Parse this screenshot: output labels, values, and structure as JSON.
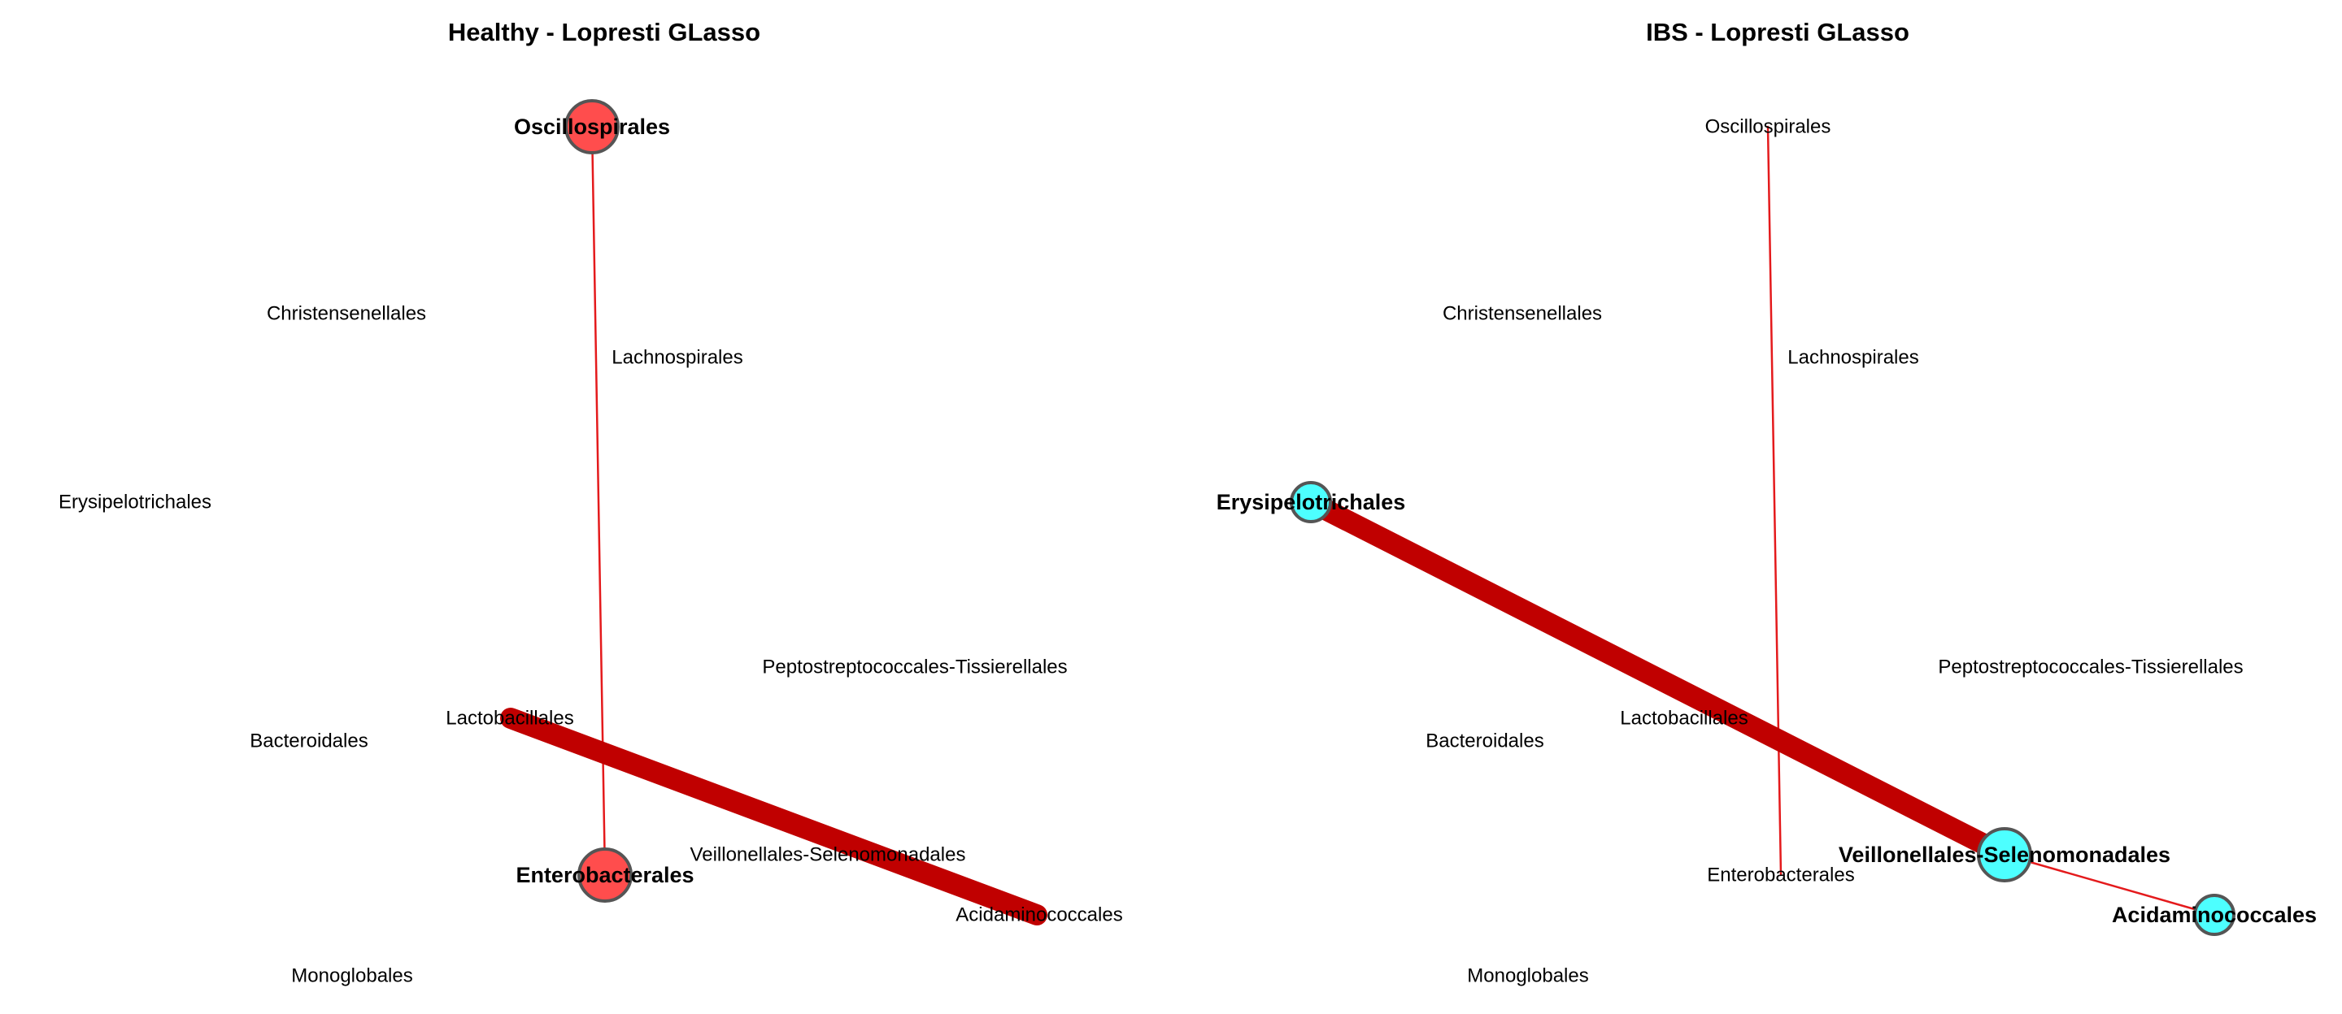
{
  "panels": [
    {
      "id": "healthy",
      "title": "Healthy - Lopresti GLasso",
      "node_color": "#ff4d4d",
      "nodes": [
        {
          "id": "oscillospirales",
          "label": "Oscillospirales",
          "hub": true
        },
        {
          "id": "christensenellales",
          "label": "Christensenellales",
          "hub": false
        },
        {
          "id": "lachnospirales",
          "label": "Lachnospirales",
          "hub": false
        },
        {
          "id": "erysipelotrichales",
          "label": "Erysipelotrichales",
          "hub": false
        },
        {
          "id": "peptostreptococcales",
          "label": "Peptostreptococcales-Tissierellales",
          "hub": false
        },
        {
          "id": "lactobacillales",
          "label": "Lactobacillales",
          "hub": false
        },
        {
          "id": "bacteroidales",
          "label": "Bacteroidales",
          "hub": false
        },
        {
          "id": "veillonellales",
          "label": "Veillonellales-Selenomonadales",
          "hub": false
        },
        {
          "id": "enterobacterales",
          "label": "Enterobacterales",
          "hub": true
        },
        {
          "id": "acidaminococcales",
          "label": "Acidaminococcales",
          "hub": false
        },
        {
          "id": "monoglobales",
          "label": "Monoglobales",
          "hub": false
        }
      ],
      "edges": [
        {
          "from": "oscillospirales",
          "to": "enterobacterales",
          "weight": "thin",
          "color": "#e41a1c"
        },
        {
          "from": "lactobacillales",
          "to": "acidaminococcales",
          "weight": "thick",
          "color": "#c00000"
        }
      ]
    },
    {
      "id": "ibs",
      "title": "IBS - Lopresti GLasso",
      "node_color": "#4dffff",
      "nodes": [
        {
          "id": "oscillospirales",
          "label": "Oscillospirales",
          "hub": false
        },
        {
          "id": "christensenellales",
          "label": "Christensenellales",
          "hub": false
        },
        {
          "id": "lachnospirales",
          "label": "Lachnospirales",
          "hub": false
        },
        {
          "id": "erysipelotrichales",
          "label": "Erysipelotrichales",
          "hub": true
        },
        {
          "id": "peptostreptococcales",
          "label": "Peptostreptococcales-Tissierellales",
          "hub": false
        },
        {
          "id": "lactobacillales",
          "label": "Lactobacillales",
          "hub": false
        },
        {
          "id": "bacteroidales",
          "label": "Bacteroidales",
          "hub": false
        },
        {
          "id": "veillonellales",
          "label": "Veillonellales-Selenomonadales",
          "hub": true
        },
        {
          "id": "enterobacterales",
          "label": "Enterobacterales",
          "hub": false
        },
        {
          "id": "acidaminococcales",
          "label": "Acidaminococcales",
          "hub": true
        },
        {
          "id": "monoglobales",
          "label": "Monoglobales",
          "hub": false
        }
      ],
      "edges": [
        {
          "from": "oscillospirales",
          "to": "enterobacterales",
          "weight": "thin",
          "color": "#e41a1c"
        },
        {
          "from": "erysipelotrichales",
          "to": "veillonellales",
          "weight": "thick",
          "color": "#c00000"
        },
        {
          "from": "veillonellales",
          "to": "acidaminococcales",
          "weight": "thin",
          "color": "#e41a1c"
        }
      ]
    }
  ]
}
